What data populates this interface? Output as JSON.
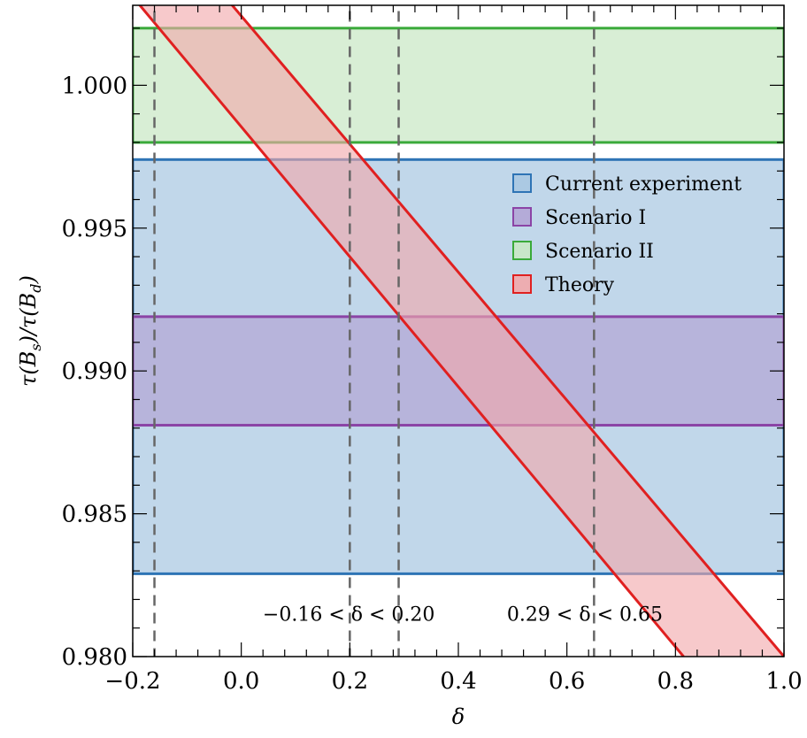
{
  "chart_data": {
    "type": "area",
    "xlabel": "δ",
    "ylabel": "τ(B_s)/τ(B_d)",
    "xlim": [
      -0.2,
      1.0
    ],
    "ylim": [
      0.98,
      1.0028
    ],
    "x_ticks": [
      -0.2,
      0.0,
      0.2,
      0.4,
      0.6,
      0.8,
      1.0
    ],
    "x_tick_labels": [
      "−0.2",
      "0.0",
      "0.2",
      "0.4",
      "0.6",
      "0.8",
      "1.0"
    ],
    "y_ticks": [
      0.98,
      0.985,
      0.99,
      0.995,
      1.0
    ],
    "y_tick_labels": [
      "0.980",
      "0.985",
      "0.990",
      "0.995",
      "1.000"
    ],
    "grid": false,
    "legend_position": "right",
    "series": [
      {
        "name": "Current experiment",
        "kind": "hband",
        "ymin": 0.9829,
        "ymax": 0.9974,
        "fill": "#a9c8e2",
        "stroke": "#2e74b5"
      },
      {
        "name": "Scenario I",
        "kind": "hband",
        "ymin": 0.9881,
        "ymax": 0.9919,
        "fill": "#b3a6d6",
        "stroke": "#8b44a6"
      },
      {
        "name": "Scenario II",
        "kind": "hband",
        "ymin": 0.998,
        "ymax": 1.002,
        "fill": "#c9e8c5",
        "stroke": "#3aaa3a"
      },
      {
        "name": "Theory",
        "kind": "diagonal-band",
        "upper": [
          [
            -0.03,
            1.0031
          ],
          [
            1.0,
            0.98
          ]
        ],
        "lower": [
          [
            -0.2,
            1.0031
          ],
          [
            0.815,
            0.98
          ]
        ],
        "fill": "#f2a8ab",
        "stroke": "#e02020"
      }
    ],
    "vlines": [
      -0.16,
      0.2,
      0.29,
      0.65
    ],
    "annotations": [
      {
        "text": "−0.16 < δ < 0.20",
        "x": 0.02,
        "y": 0.9815
      },
      {
        "text": "0.29 < δ < 0.65",
        "x": 0.47,
        "y": 0.9815
      }
    ]
  }
}
